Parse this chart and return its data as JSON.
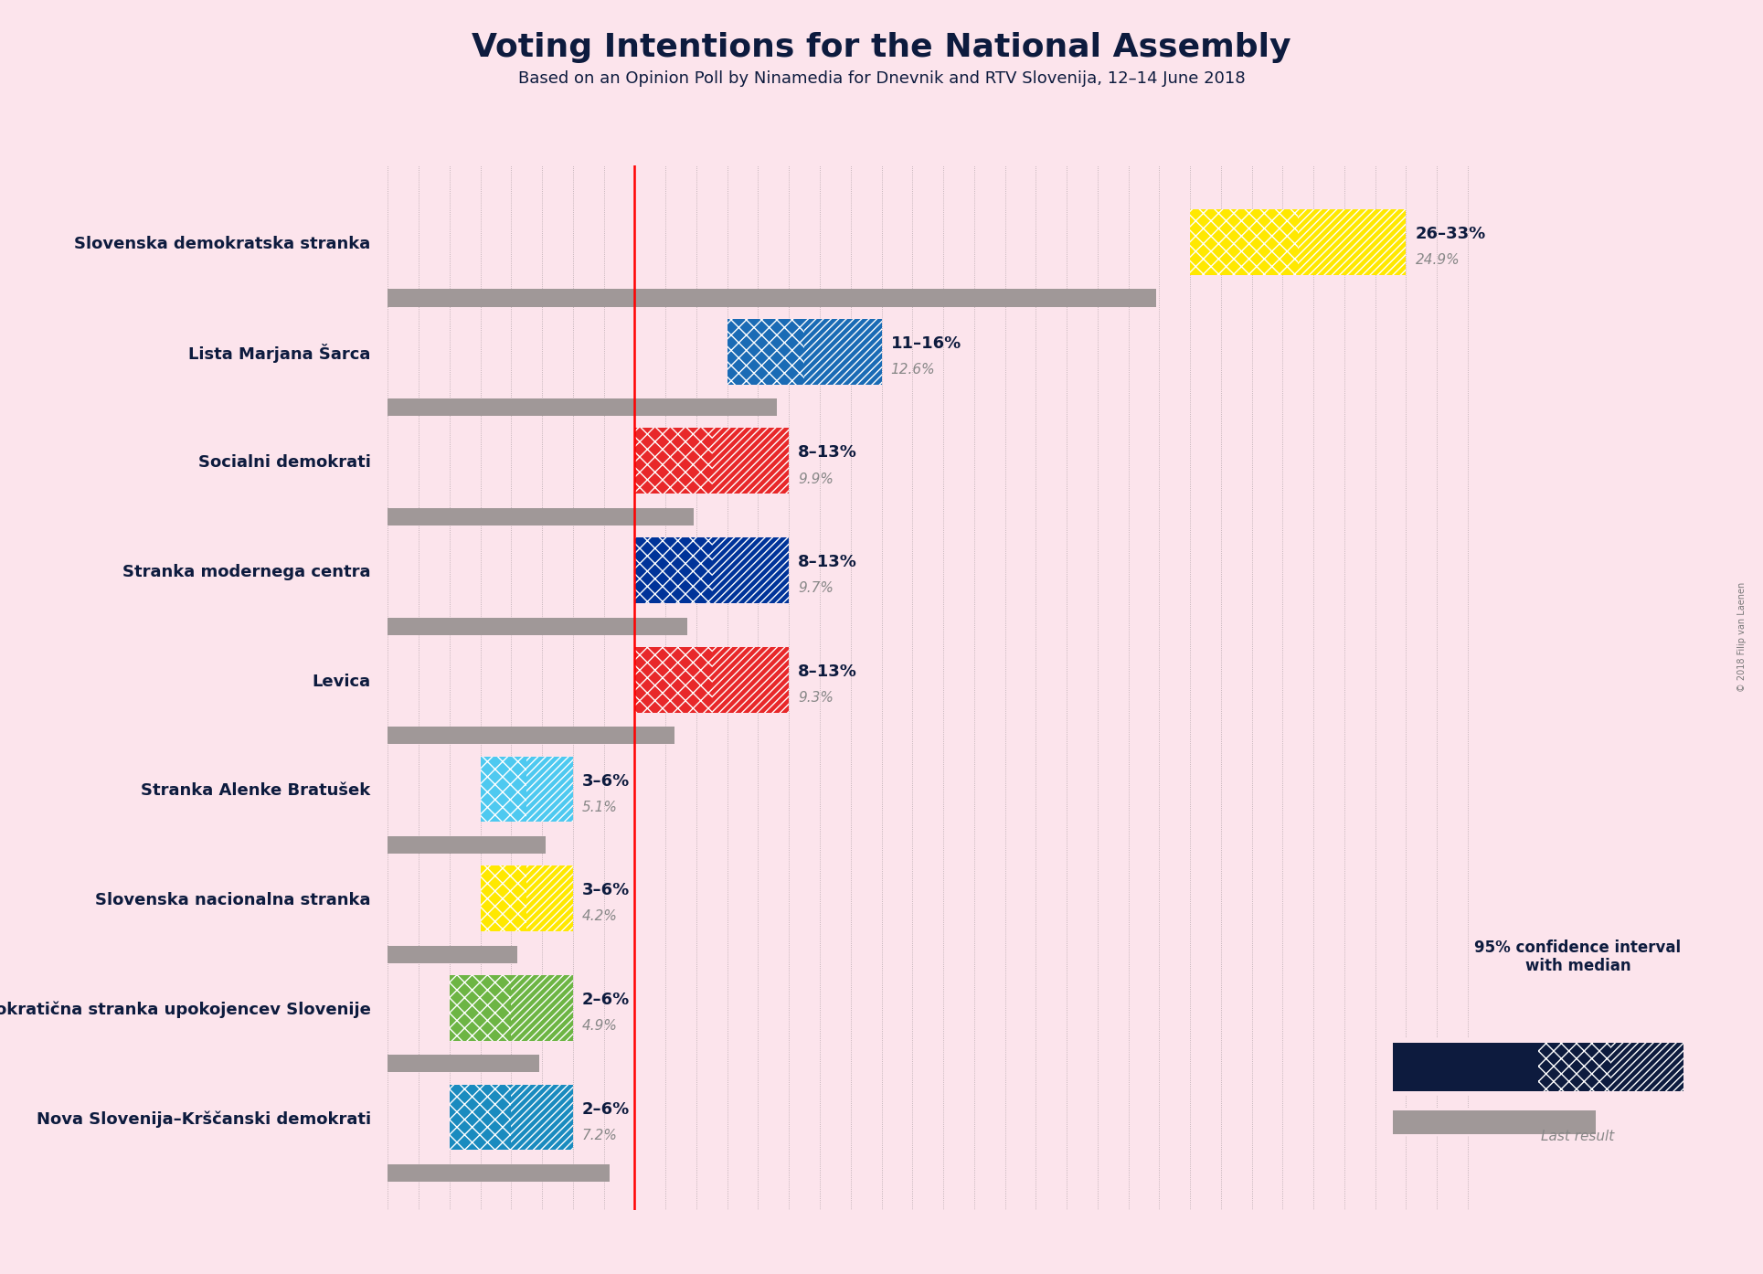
{
  "title": "Voting Intentions for the National Assembly",
  "subtitle": "Based on an Opinion Poll by Ninamedia for Dnevnik and RTV Slovenija, 12–14 June 2018",
  "copyright": "© 2018 Filip van Laenen",
  "background_color": "#fce4ec",
  "title_color": "#0d1b3e",
  "parties": [
    "Slovenska demokratska stranka",
    "Lista Marjana Šarca",
    "Socialni demokrati",
    "Stranka modernega centra",
    "Levica",
    "Stranka Alenke Bratušek",
    "Slovenska nacionalna stranka",
    "Demokratična stranka upokojencev Slovenije",
    "Nova Slovenija–Krščanski demokrati"
  ],
  "colors": [
    "#FFE800",
    "#1A6BB5",
    "#E8282A",
    "#003399",
    "#E8282A",
    "#4EC9F0",
    "#FFE800",
    "#6DB544",
    "#1A8BBF"
  ],
  "ci_low": [
    26,
    11,
    8,
    8,
    8,
    3,
    3,
    2,
    2
  ],
  "ci_high": [
    33,
    16,
    13,
    13,
    13,
    6,
    6,
    6,
    6
  ],
  "median": [
    29.5,
    13.5,
    10.5,
    10.5,
    10.5,
    4.5,
    4.5,
    4.0,
    4.0
  ],
  "last_result": [
    24.9,
    12.6,
    9.9,
    9.7,
    9.3,
    5.1,
    4.2,
    4.9,
    7.2
  ],
  "label_range": [
    "26–33%",
    "11–16%",
    "8–13%",
    "8–13%",
    "8–13%",
    "3–6%",
    "3–6%",
    "2–6%",
    "2–6%"
  ],
  "label_last": [
    "24.9%",
    "12.6%",
    "9.9%",
    "9.7%",
    "9.3%",
    "5.1%",
    "4.2%",
    "4.9%",
    "7.2%"
  ],
  "red_line_x": 8.0,
  "xlim": [
    0,
    36
  ],
  "legend_text1": "95% confidence interval",
  "legend_text2": "with median",
  "legend_last": "Last result"
}
